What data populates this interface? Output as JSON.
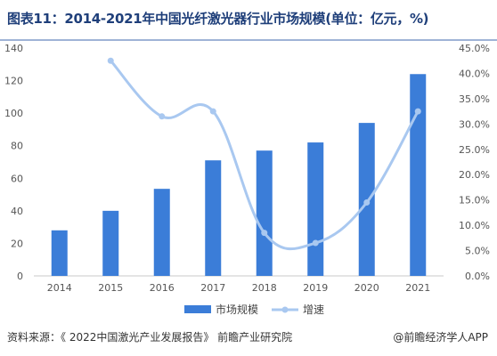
{
  "title": "图表11：2014-2021年中国光纤激光器行业市场规模(单位：亿元，%)",
  "source": "资料来源：《 2022中国激光产业发展报告》 前瞻产业研究院",
  "brand": "@前瞻经济学人APP",
  "colors": {
    "bar": "#3b7dd8",
    "line": "#a9c8f0",
    "title": "#1f3f7a"
  },
  "chart_data": {
    "type": "bar",
    "categories": [
      "2014",
      "2015",
      "2016",
      "2017",
      "2018",
      "2019",
      "2020",
      "2021"
    ],
    "series": [
      {
        "name": "市场规模",
        "type": "bar",
        "axis": "left",
        "values": [
          28,
          40,
          53.5,
          71,
          77,
          82,
          94,
          124
        ]
      },
      {
        "name": "增速",
        "type": "line",
        "axis": "right",
        "values": [
          null,
          42.5,
          31.5,
          32.5,
          8.5,
          6.5,
          14.5,
          32.5
        ]
      }
    ],
    "y_left": {
      "ticks": [
        "0",
        "20",
        "40",
        "60",
        "80",
        "100",
        "120",
        "140"
      ],
      "ylim": [
        0,
        140
      ]
    },
    "y_right": {
      "ticks": [
        "0.0%",
        "5.0%",
        "10.0%",
        "15.0%",
        "20.0%",
        "25.0%",
        "30.0%",
        "35.0%",
        "40.0%",
        "45.0%"
      ],
      "ylim": [
        0,
        45
      ]
    },
    "legend": [
      "市场规模",
      "增速"
    ],
    "legend_position": "bottom-center",
    "grid": false
  }
}
